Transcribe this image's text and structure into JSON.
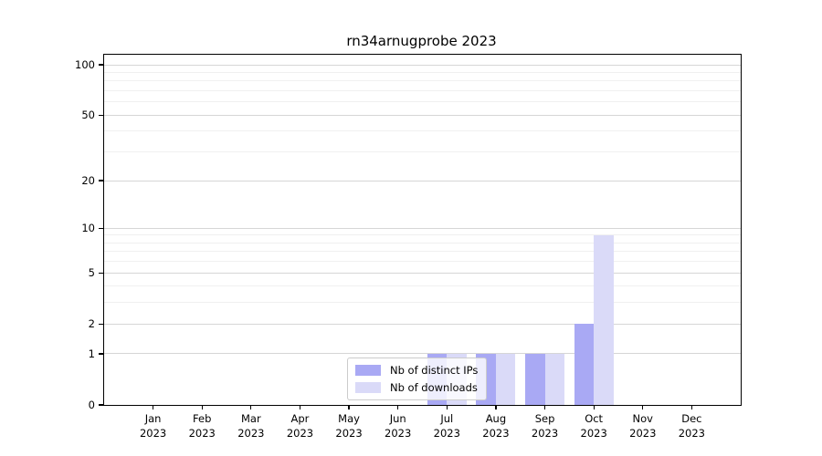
{
  "chart_data": {
    "type": "bar",
    "title": "rn34arnugprobe 2023",
    "categories": [
      "Jan",
      "Feb",
      "Mar",
      "Apr",
      "May",
      "Jun",
      "Jul",
      "Aug",
      "Sep",
      "Oct",
      "Nov",
      "Dec"
    ],
    "year_label": "2023",
    "series": [
      {
        "name": "Nb of distinct IPs",
        "color": "#a9a9f4",
        "values": [
          0,
          0,
          0,
          0,
          0,
          0,
          1,
          1,
          1,
          2,
          0,
          0
        ]
      },
      {
        "name": "Nb of downloads",
        "color": "#dadaf8",
        "values": [
          0,
          0,
          0,
          0,
          0,
          0,
          1,
          1,
          1,
          9,
          0,
          0
        ]
      }
    ],
    "yscale": "log1p",
    "ylim": [
      0,
      115
    ],
    "yticks": [
      0,
      1,
      2,
      5,
      10,
      20,
      50,
      100
    ],
    "minor_gridlines": [
      3,
      4,
      6,
      7,
      8,
      9,
      30,
      40,
      60,
      70,
      80,
      90
    ],
    "grid": {
      "major_color": "#d6d6d6",
      "minor_color": "#f0f0f0"
    },
    "legend": {
      "position": "lower-center"
    }
  }
}
